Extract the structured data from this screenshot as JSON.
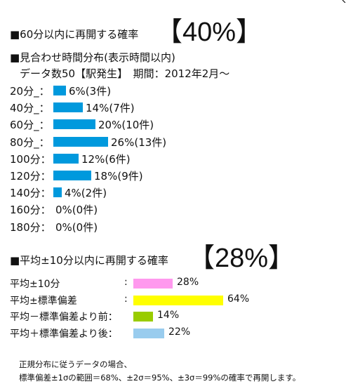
{
  "section1": {
    "title": "■60分以内に再開する確率",
    "big": "【40%】"
  },
  "section2": {
    "title": "■見合わせ時間分布(表示時間以内)",
    "subtitle": "データ数50【駅発生】　期間：2012年2月～"
  },
  "section3": {
    "title": "■平均±10分以内に再開する確率",
    "big": "【28%】"
  },
  "chart_data": [
    {
      "type": "bar",
      "orientation": "horizontal",
      "title": "■見合わせ時間分布(表示時間以内)",
      "categories": [
        "20分_：",
        "40分_：",
        "60分_：",
        "80分_：",
        "100分：",
        "120分：",
        "140分：",
        "160分：",
        "180分："
      ],
      "values": [
        6,
        14,
        20,
        26,
        12,
        18,
        4,
        0,
        0
      ],
      "counts": [
        3,
        7,
        10,
        13,
        6,
        9,
        2,
        0,
        0
      ],
      "value_labels": [
        "6%(3件)",
        "14%(7件)",
        "20%(10件)",
        "26%(13件)",
        "12%(6件)",
        "18%(9件)",
        "4%(2件)",
        "0%(0件)",
        "0%(0件)"
      ],
      "unit": "%",
      "bar_color": "#0099dd"
    },
    {
      "type": "bar",
      "orientation": "horizontal",
      "title": "■平均±10分以内に再開する確率",
      "categories": [
        "平均±10分",
        "平均±標準偏差",
        "平均－標準偏差より前：",
        "平均＋標準偏差より後："
      ],
      "colons": [
        ":",
        ":",
        "",
        ""
      ],
      "values": [
        28,
        64,
        14,
        22
      ],
      "value_labels": [
        "28%",
        "64%",
        "14%",
        "22%"
      ],
      "unit": "%",
      "colors": [
        "#ff99ee",
        "#ffff00",
        "#99cc00",
        "#99ccee"
      ]
    }
  ],
  "footer": {
    "line1": "正規分布に従うデータの場合、",
    "line2": "標準偏差±1σの範囲＝68%、±2σ＝95%、±3σ＝99%の確率で再開します。"
  }
}
